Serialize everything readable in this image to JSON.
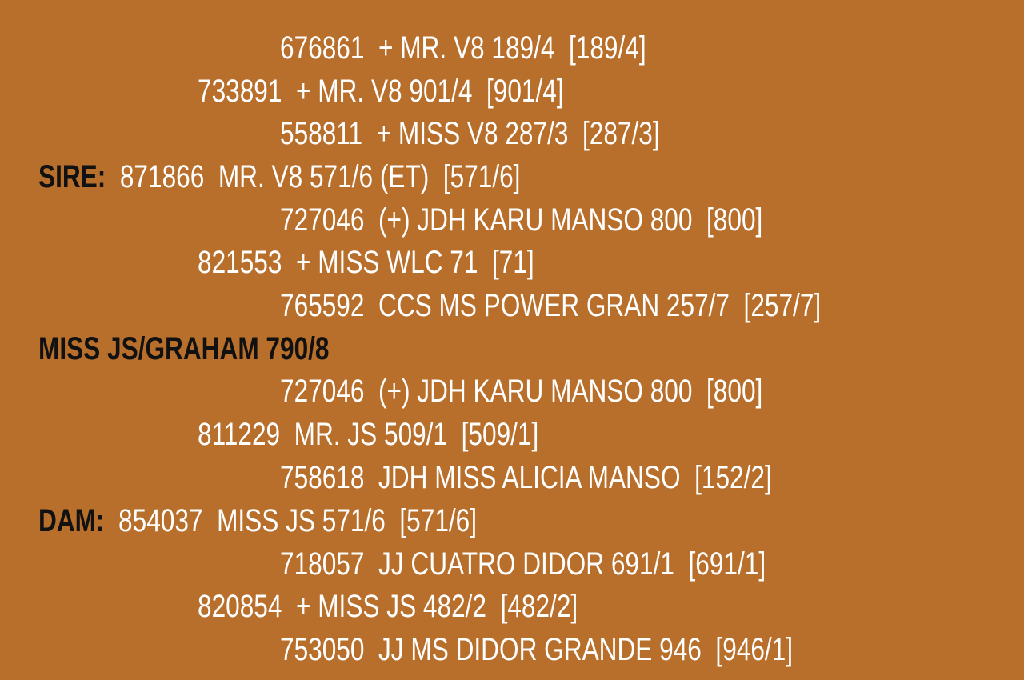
{
  "background_color": "#b86f2b",
  "pedigree": {
    "sire_ancestors": [
      {
        "level": 2,
        "text": "676861  + MR. V8 189/4  [189/4]"
      },
      {
        "level": 1,
        "text": "733891  + MR. V8 901/4  [901/4]"
      },
      {
        "level": 2,
        "text": "558811  + MISS V8 287/3  [287/3]"
      }
    ],
    "sire": {
      "label": "SIRE:",
      "text": "871866  MR. V8 571/6 (ET)  [571/6]"
    },
    "sire_dam_side": [
      {
        "level": 2,
        "text": "727046  (+) JDH KARU MANSO 800  [800]"
      },
      {
        "level": 1,
        "text": "821553  + MISS WLC 71  [71]"
      },
      {
        "level": 2,
        "text": "765592  CCS MS POWER GRAN 257/7  [257/7]"
      }
    ],
    "subject": "MISS JS/GRAHAM 790/8",
    "dam_sire_side": [
      {
        "level": 2,
        "text": "727046  (+) JDH KARU MANSO 800  [800]"
      },
      {
        "level": 1,
        "text": "811229  MR. JS 509/1  [509/1]"
      },
      {
        "level": 2,
        "text": "758618  JDH MISS ALICIA MANSO  [152/2]"
      }
    ],
    "dam": {
      "label": "DAM:",
      "text": "854037  MISS JS 571/6  [571/6]"
    },
    "dam_dam_side": [
      {
        "level": 2,
        "text": "718057  JJ CUATRO DIDOR 691/1  [691/1]"
      },
      {
        "level": 1,
        "text": "820854  + MISS JS 482/2  [482/2]"
      },
      {
        "level": 2,
        "text": "753050  JJ MS DIDOR GRANDE 946  [946/1]"
      }
    ]
  }
}
